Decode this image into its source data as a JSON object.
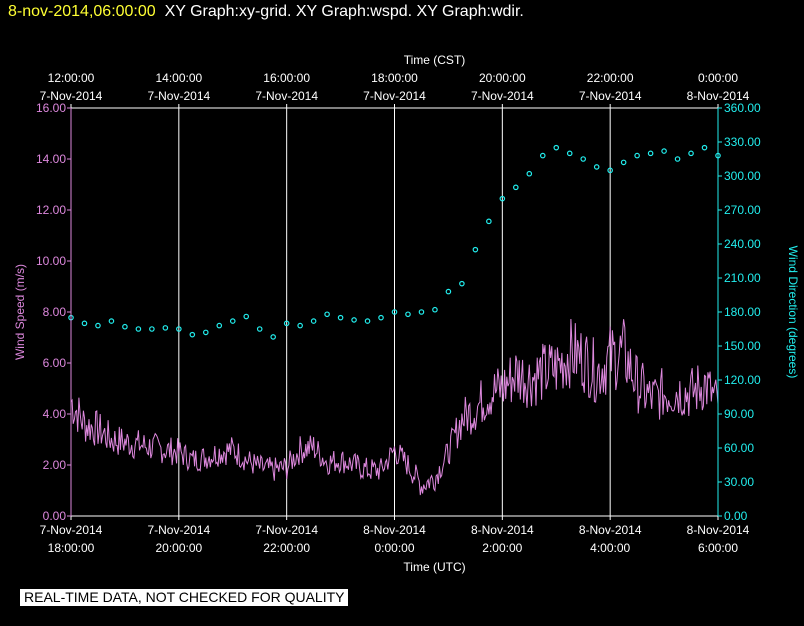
{
  "header": {
    "datetime": "8-nov-2014,06:00:00",
    "graphs": "XY Graph:xy-grid.  XY Graph:wspd.  XY Graph:wdir."
  },
  "footer": {
    "disclaimer": "REAL-TIME DATA, NOT CHECKED FOR QUALITY"
  },
  "colors": {
    "background": "#000000",
    "axis": "#ffffff",
    "grid": "#ffffff",
    "speed": "#dd88dd",
    "direction": "#22eeee",
    "header_date": "#ffff33"
  },
  "chart_data": {
    "type": "line",
    "top_axis": {
      "label": "Time (CST)",
      "ticks": [
        {
          "t": 0,
          "time": "12:00:00",
          "date": "7-Nov-2014"
        },
        {
          "t": 2,
          "time": "14:00:00",
          "date": "7-Nov-2014"
        },
        {
          "t": 4,
          "time": "16:00:00",
          "date": "7-Nov-2014"
        },
        {
          "t": 6,
          "time": "18:00:00",
          "date": "7-Nov-2014"
        },
        {
          "t": 8,
          "time": "20:00:00",
          "date": "7-Nov-2014"
        },
        {
          "t": 10,
          "time": "22:00:00",
          "date": "7-Nov-2014"
        },
        {
          "t": 12,
          "time": "0:00:00",
          "date": "8-Nov-2014"
        }
      ]
    },
    "bottom_axis": {
      "label": "Time (UTC)",
      "ticks": [
        {
          "t": 0,
          "date": "7-Nov-2014",
          "time": "18:00:00"
        },
        {
          "t": 2,
          "date": "7-Nov-2014",
          "time": "20:00:00"
        },
        {
          "t": 4,
          "date": "7-Nov-2014",
          "time": "22:00:00"
        },
        {
          "t": 6,
          "date": "8-Nov-2014",
          "time": "0:00:00"
        },
        {
          "t": 8,
          "date": "8-Nov-2014",
          "time": "2:00:00"
        },
        {
          "t": 10,
          "date": "8-Nov-2014",
          "time": "4:00:00"
        },
        {
          "t": 12,
          "date": "8-Nov-2014",
          "time": "6:00:00"
        }
      ]
    },
    "left_axis": {
      "label": "Wind Speed (m/s)",
      "ylim": [
        0,
        16
      ],
      "ticks": [
        "0.00",
        "2.00",
        "4.00",
        "6.00",
        "8.00",
        "10.00",
        "12.00",
        "14.00",
        "16.00"
      ]
    },
    "right_axis": {
      "label": "Wind Direction (degrees)",
      "ylim": [
        0,
        360
      ],
      "ticks": [
        "0.00",
        "30.00",
        "60.00",
        "90.00",
        "120.00",
        "150.00",
        "180.00",
        "210.00",
        "240.00",
        "270.00",
        "300.00",
        "330.00",
        "360.00"
      ]
    },
    "grid": "vertical",
    "series": [
      {
        "name": "Wind Speed",
        "axis": "left",
        "style": "line",
        "t": [
          0,
          0.25,
          0.5,
          0.75,
          1,
          1.25,
          1.5,
          1.75,
          2,
          2.25,
          2.5,
          2.75,
          3,
          3.25,
          3.5,
          3.75,
          4,
          4.25,
          4.5,
          4.75,
          5,
          5.25,
          5.5,
          5.75,
          6,
          6.25,
          6.5,
          6.75,
          7,
          7.25,
          7.5,
          7.75,
          8,
          8.25,
          8.5,
          8.75,
          9,
          9.25,
          9.5,
          9.75,
          10,
          10.25,
          10.5,
          10.75,
          11,
          11.25,
          11.5,
          11.75,
          12
        ],
        "values": [
          4.5,
          3.6,
          3.4,
          3.0,
          2.9,
          2.8,
          2.7,
          2.6,
          2.5,
          2.2,
          2.3,
          2.5,
          2.6,
          2.2,
          1.9,
          1.8,
          1.9,
          2.6,
          2.7,
          2.1,
          2.2,
          2.0,
          1.8,
          1.8,
          2.6,
          2.0,
          1.2,
          1.5,
          2.5,
          3.8,
          4.2,
          4.8,
          5.0,
          5.6,
          5.4,
          5.6,
          5.8,
          6.4,
          6.2,
          5.6,
          6.2,
          6.4,
          5.2,
          4.6,
          4.8,
          4.9,
          4.8,
          5.2,
          4.4
        ]
      },
      {
        "name": "Wind Direction",
        "axis": "right",
        "style": "scatter",
        "t": [
          0,
          0.25,
          0.5,
          0.75,
          1,
          1.25,
          1.5,
          1.75,
          2,
          2.25,
          2.5,
          2.75,
          3,
          3.25,
          3.5,
          3.75,
          4,
          4.25,
          4.5,
          4.75,
          5,
          5.25,
          5.5,
          5.75,
          6,
          6.25,
          6.5,
          6.75,
          7,
          7.25,
          7.5,
          7.75,
          8,
          8.25,
          8.5,
          8.75,
          9,
          9.25,
          9.5,
          9.75,
          10,
          10.25,
          10.5,
          10.75,
          11,
          11.25,
          11.5,
          11.75,
          12
        ],
        "values": [
          175,
          170,
          168,
          172,
          167,
          165,
          165,
          166,
          165,
          160,
          162,
          168,
          172,
          176,
          165,
          158,
          170,
          168,
          172,
          178,
          175,
          173,
          172,
          175,
          180,
          178,
          180,
          182,
          198,
          205,
          235,
          260,
          280,
          290,
          302,
          318,
          325,
          320,
          315,
          308,
          305,
          312,
          318,
          320,
          322,
          315,
          320,
          325,
          318
        ]
      }
    ]
  }
}
